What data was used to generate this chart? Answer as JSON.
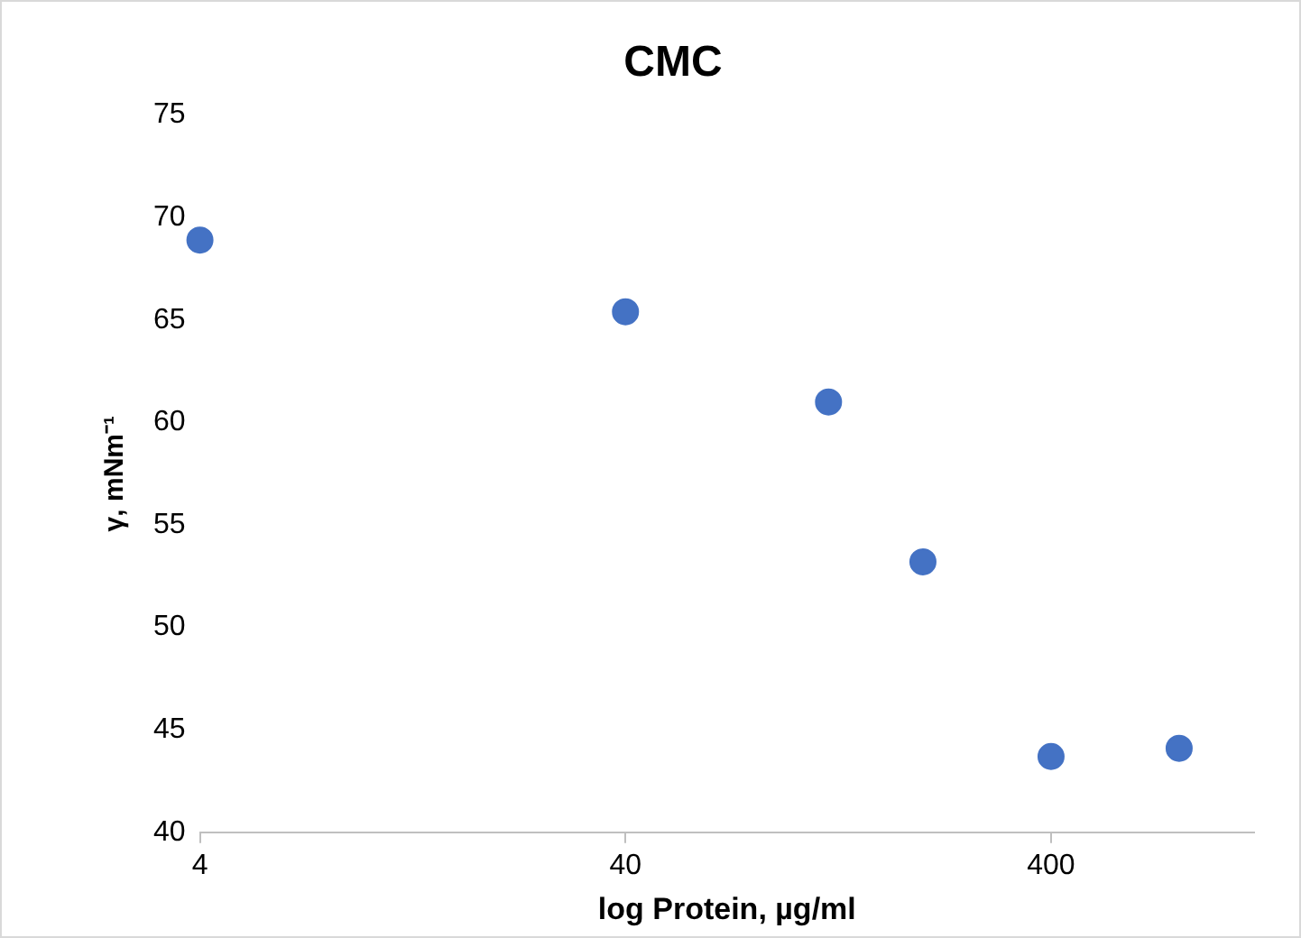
{
  "chart_data": {
    "type": "scatter",
    "title": "CMC",
    "xlabel": "log Protein, µg/ml",
    "ylabel": "γ, mNm⁻¹",
    "x": [
      4,
      40,
      120,
      200,
      400,
      800
    ],
    "series": [
      {
        "color": "#4472c4",
        "values": [
          68.9,
          65.4,
          61,
          53.2,
          43.7,
          44.1
        ]
      }
    ],
    "log": "x",
    "xlim": [
      4,
      1200
    ],
    "xticks": [
      4,
      40,
      400
    ],
    "ylim": [
      40,
      75
    ],
    "yticks": [
      40,
      45,
      50,
      55,
      60,
      65,
      70,
      75
    ],
    "grid": false,
    "legend": false,
    "marker": "circle"
  }
}
